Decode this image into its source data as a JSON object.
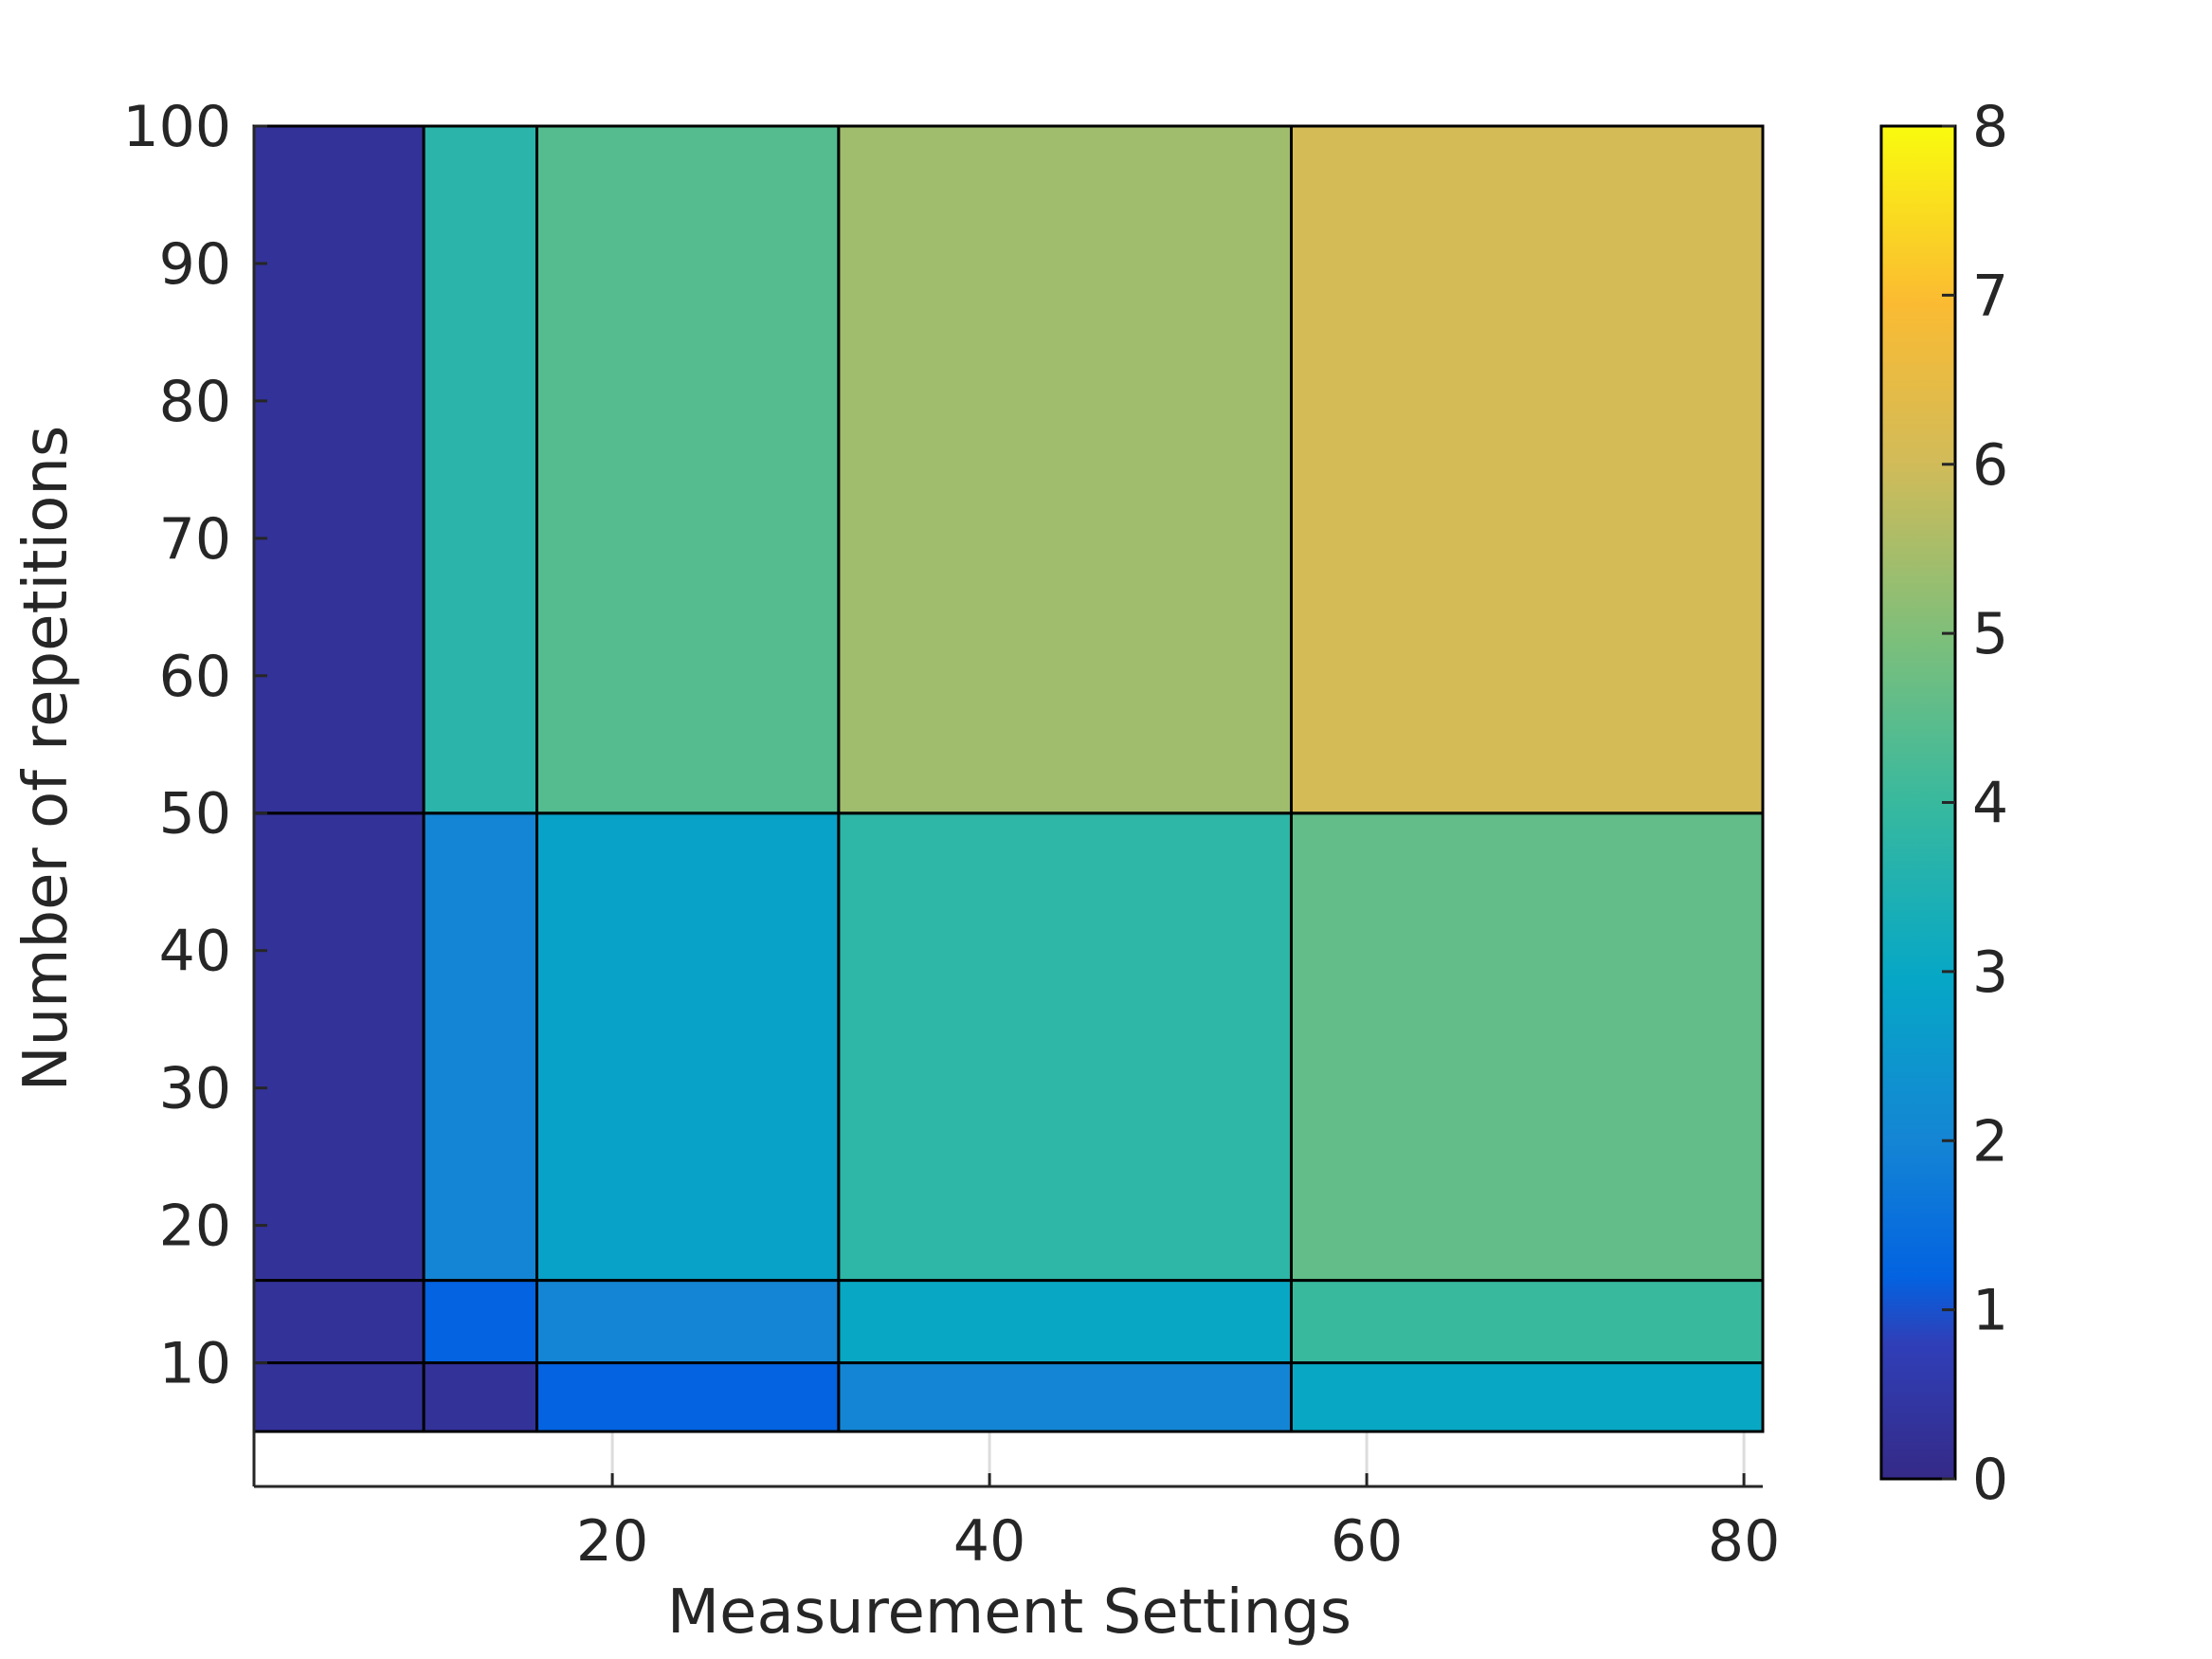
{
  "chart_data": {
    "type": "heatmap",
    "xlabel": "Measurement Settings",
    "ylabel": "Number of repetitions",
    "xlim": [
      1,
      81
    ],
    "ylim": [
      1,
      100
    ],
    "xticks": [
      "20",
      "40",
      "60",
      "80"
    ],
    "yticks": [
      "10",
      "20",
      "30",
      "40",
      "50",
      "60",
      "70",
      "80",
      "90",
      "100"
    ],
    "x_edges": [
      1,
      10,
      16,
      32,
      56,
      81
    ],
    "y_edges": [
      5,
      10,
      16,
      50,
      100
    ],
    "values": [
      [
        0.3,
        0.3,
        1.2,
        2.0,
        3.0
      ],
      [
        0.3,
        1.2,
        2.0,
        3.0,
        4.0
      ],
      [
        0.3,
        2.0,
        2.8,
        3.8,
        4.6
      ],
      [
        0.3,
        3.7,
        4.4,
        5.4,
        6.1
      ]
    ],
    "colorbar": {
      "range": [
        0,
        8
      ],
      "ticks": [
        "0",
        "1",
        "2",
        "3",
        "4",
        "5",
        "6",
        "7",
        "8"
      ]
    },
    "colormap": "parula",
    "grid": false
  }
}
